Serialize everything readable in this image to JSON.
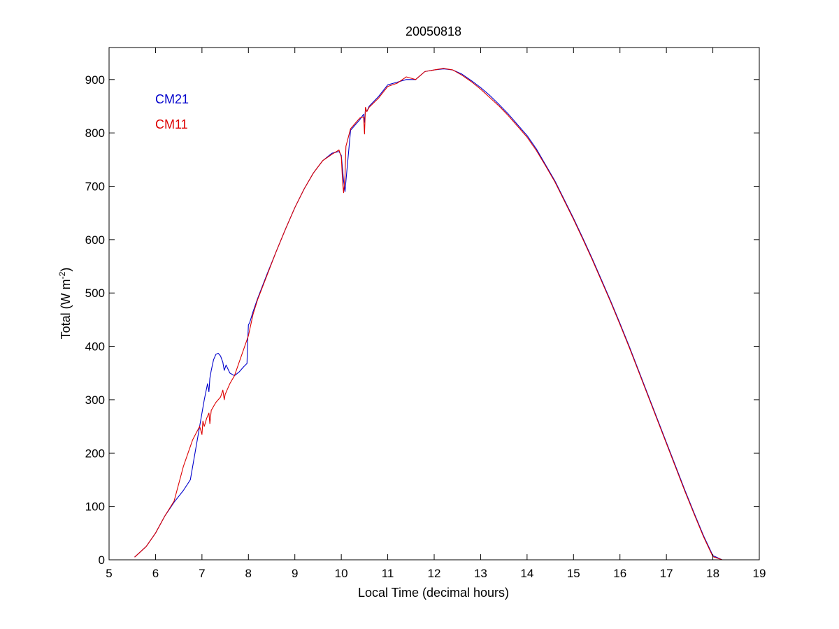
{
  "chart_data": {
    "type": "line",
    "title": "20050818",
    "xlabel": "Local Time (decimal hours)",
    "ylabel": {
      "main": "Total (W m",
      "superscript": "-2",
      "close": ")"
    },
    "xlim": [
      5,
      19
    ],
    "ylim": [
      0,
      960
    ],
    "xticks": [
      5,
      6,
      7,
      8,
      9,
      10,
      11,
      12,
      13,
      14,
      15,
      16,
      17,
      18,
      19
    ],
    "yticks": [
      0,
      100,
      200,
      300,
      400,
      500,
      600,
      700,
      800,
      900
    ],
    "grid": false,
    "legend": {
      "placement": "top-left"
    },
    "series": [
      {
        "name": "CM21",
        "color": "#0000cc",
        "x": [
          5.55,
          5.8,
          6.0,
          6.2,
          6.4,
          6.6,
          6.75,
          6.85,
          6.95,
          7.05,
          7.12,
          7.15,
          7.17,
          7.2,
          7.25,
          7.3,
          7.35,
          7.4,
          7.45,
          7.48,
          7.52,
          7.6,
          7.7,
          7.8,
          7.9,
          7.97,
          7.98,
          8.0,
          8.03,
          8.1,
          8.2,
          8.4,
          8.6,
          8.8,
          9.0,
          9.2,
          9.4,
          9.6,
          9.8,
          9.95,
          10.0,
          10.05,
          10.08,
          10.1,
          10.2,
          10.4,
          10.48,
          10.5,
          10.52,
          10.55,
          10.6,
          10.8,
          11.0,
          11.2,
          11.4,
          11.6,
          11.8,
          12.0,
          12.2,
          12.4,
          12.6,
          12.8,
          13.0,
          13.2,
          13.4,
          13.6,
          13.8,
          14.0,
          14.2,
          14.4,
          14.6,
          14.8,
          15.0,
          15.2,
          15.4,
          15.6,
          15.8,
          16.0,
          16.2,
          16.4,
          16.6,
          16.8,
          17.0,
          17.2,
          17.4,
          17.6,
          17.8,
          18.0,
          18.2,
          18.4,
          18.6,
          18.8,
          19.0
        ],
        "y": [
          5,
          25,
          50,
          82,
          108,
          130,
          150,
          200,
          250,
          300,
          330,
          315,
          340,
          355,
          375,
          385,
          387,
          382,
          370,
          355,
          365,
          350,
          345,
          352,
          362,
          368,
          400,
          440,
          445,
          465,
          490,
          535,
          578,
          620,
          660,
          695,
          725,
          748,
          762,
          765,
          758,
          710,
          690,
          710,
          805,
          825,
          835,
          820,
          845,
          840,
          850,
          868,
          890,
          895,
          900,
          900,
          915,
          918,
          920,
          918,
          910,
          898,
          885,
          870,
          853,
          835,
          815,
          795,
          770,
          740,
          710,
          675,
          640,
          603,
          565,
          525,
          485,
          443,
          400,
          355,
          310,
          265,
          220,
          175,
          130,
          87,
          45,
          8,
          0,
          0,
          0,
          0,
          0
        ]
      },
      {
        "name": "CM11",
        "color": "#dd0000",
        "x": [
          5.55,
          5.8,
          6.0,
          6.2,
          6.4,
          6.6,
          6.8,
          6.95,
          7.0,
          7.02,
          7.05,
          7.1,
          7.15,
          7.17,
          7.2,
          7.3,
          7.4,
          7.45,
          7.48,
          7.5,
          7.55,
          7.6,
          7.7,
          7.8,
          7.9,
          8.0,
          8.1,
          8.2,
          8.4,
          8.6,
          8.8,
          9.0,
          9.2,
          9.4,
          9.6,
          9.8,
          9.95,
          10.0,
          10.03,
          10.05,
          10.08,
          10.1,
          10.2,
          10.4,
          10.48,
          10.5,
          10.52,
          10.55,
          10.6,
          10.8,
          11.0,
          11.2,
          11.4,
          11.6,
          11.8,
          12.0,
          12.2,
          12.4,
          12.6,
          12.8,
          13.0,
          13.2,
          13.4,
          13.6,
          13.8,
          14.0,
          14.2,
          14.4,
          14.6,
          14.8,
          15.0,
          15.2,
          15.4,
          15.6,
          15.8,
          16.0,
          16.2,
          16.4,
          16.6,
          16.8,
          17.0,
          17.2,
          17.4,
          17.6,
          17.8,
          18.0,
          18.2,
          18.4,
          18.6,
          18.8,
          19.0
        ],
        "y": [
          5,
          25,
          50,
          82,
          110,
          175,
          225,
          250,
          235,
          260,
          250,
          265,
          275,
          255,
          280,
          295,
          305,
          318,
          300,
          310,
          320,
          330,
          345,
          370,
          395,
          420,
          460,
          488,
          533,
          578,
          620,
          660,
          695,
          725,
          748,
          760,
          768,
          755,
          705,
          688,
          720,
          775,
          808,
          828,
          830,
          798,
          848,
          840,
          848,
          865,
          887,
          893,
          905,
          900,
          915,
          918,
          921,
          918,
          908,
          896,
          882,
          866,
          850,
          832,
          812,
          792,
          767,
          738,
          708,
          673,
          638,
          601,
          563,
          523,
          483,
          441,
          398,
          353,
          308,
          263,
          218,
          173,
          128,
          85,
          43,
          6,
          0,
          0,
          0,
          0,
          0
        ]
      }
    ]
  }
}
